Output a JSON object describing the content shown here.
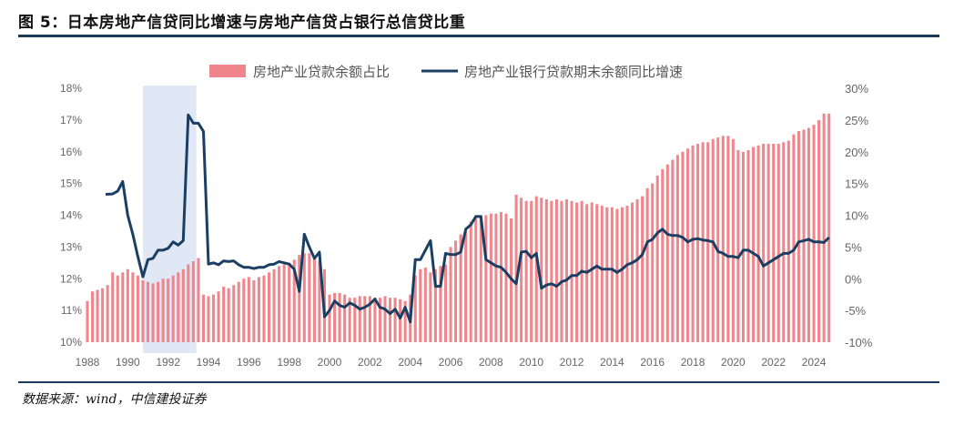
{
  "figure_title": "图 5：日本房地产信贷同比增速与房地产信贷占银行总信贷比重",
  "source_note": "数据来源：wind，中信建投证券",
  "colors": {
    "bar": "#f0868c",
    "line": "#1b3f63",
    "shade": "#dbe4f4",
    "rule": "#1b3a5c"
  },
  "chart_data": {
    "type": "bar+line",
    "title": "图 5：日本房地产信贷同比增速与房地产信贷占银行总信贷比重",
    "legend": [
      "房地产业贷款余额占比",
      "房地产业银行贷款期末余额同比增速"
    ],
    "x_range": [
      1988,
      2024.9
    ],
    "x_ticks": [
      "1988",
      "1990",
      "1992",
      "1994",
      "1996",
      "1998",
      "2000",
      "2002",
      "2004",
      "2006",
      "2008",
      "2010",
      "2012",
      "2014",
      "2016",
      "2018",
      "2020",
      "2022",
      "2024"
    ],
    "y_left": {
      "min": 10,
      "max": 18,
      "ticks": [
        "10%",
        "11%",
        "12%",
        "13%",
        "14%",
        "15%",
        "16%",
        "17%",
        "18%"
      ]
    },
    "y_right": {
      "min": -10,
      "max": 30,
      "ticks": [
        "-10%",
        "-5%",
        "0%",
        "5%",
        "10%",
        "15%",
        "20%",
        "25%",
        "30%"
      ]
    },
    "shaded_period": [
      1990.75,
      1993.4
    ],
    "series": [
      {
        "name": "房地产业贷款余额占比",
        "type": "bar",
        "axis": "left",
        "points": [
          [
            1988.0,
            11.3
          ],
          [
            1988.25,
            11.6
          ],
          [
            1988.5,
            11.65
          ],
          [
            1988.75,
            11.7
          ],
          [
            1989.0,
            11.8
          ],
          [
            1989.25,
            12.2
          ],
          [
            1989.5,
            12.1
          ],
          [
            1989.75,
            12.2
          ],
          [
            1990.0,
            12.3
          ],
          [
            1990.25,
            12.2
          ],
          [
            1990.5,
            12.1
          ],
          [
            1990.75,
            11.95
          ],
          [
            1991.0,
            11.9
          ],
          [
            1991.25,
            11.85
          ],
          [
            1991.5,
            11.9
          ],
          [
            1991.75,
            12.0
          ],
          [
            1992.0,
            12.0
          ],
          [
            1992.25,
            12.1
          ],
          [
            1992.5,
            12.2
          ],
          [
            1992.75,
            12.3
          ],
          [
            1993.0,
            12.45
          ],
          [
            1993.25,
            12.55
          ],
          [
            1993.5,
            12.65
          ],
          [
            1993.75,
            11.5
          ],
          [
            1994.0,
            11.45
          ],
          [
            1994.25,
            11.5
          ],
          [
            1994.5,
            11.6
          ],
          [
            1994.75,
            11.75
          ],
          [
            1995.0,
            11.7
          ],
          [
            1995.25,
            11.8
          ],
          [
            1995.5,
            11.9
          ],
          [
            1995.75,
            12.0
          ],
          [
            1996.0,
            12.05
          ],
          [
            1996.25,
            11.95
          ],
          [
            1996.5,
            12.05
          ],
          [
            1996.75,
            12.1
          ],
          [
            1997.0,
            12.2
          ],
          [
            1997.25,
            12.3
          ],
          [
            1997.5,
            12.4
          ],
          [
            1997.75,
            12.45
          ],
          [
            1998.0,
            12.5
          ],
          [
            1998.25,
            12.6
          ],
          [
            1998.5,
            12.75
          ],
          [
            1998.75,
            12.8
          ],
          [
            1999.0,
            12.8
          ],
          [
            1999.25,
            12.7
          ],
          [
            1999.5,
            12.55
          ],
          [
            1999.75,
            12.3
          ],
          [
            2000.0,
            11.5
          ],
          [
            2000.25,
            11.55
          ],
          [
            2000.5,
            11.55
          ],
          [
            2000.75,
            11.5
          ],
          [
            2001.0,
            11.4
          ],
          [
            2001.25,
            11.4
          ],
          [
            2001.5,
            11.45
          ],
          [
            2001.75,
            11.45
          ],
          [
            2002.0,
            11.45
          ],
          [
            2002.25,
            11.4
          ],
          [
            2002.5,
            11.4
          ],
          [
            2002.75,
            11.45
          ],
          [
            2003.0,
            11.4
          ],
          [
            2003.25,
            11.4
          ],
          [
            2003.5,
            11.35
          ],
          [
            2003.75,
            11.3
          ],
          [
            2004.0,
            11.5
          ],
          [
            2004.25,
            12.1
          ],
          [
            2004.5,
            12.3
          ],
          [
            2004.75,
            12.35
          ],
          [
            2005.0,
            12.2
          ],
          [
            2005.25,
            12.3
          ],
          [
            2005.5,
            12.4
          ],
          [
            2005.75,
            12.45
          ],
          [
            2006.0,
            13.0
          ],
          [
            2006.25,
            13.2
          ],
          [
            2006.5,
            13.4
          ],
          [
            2006.75,
            13.5
          ],
          [
            2007.0,
            13.8
          ],
          [
            2007.25,
            13.9
          ],
          [
            2007.5,
            14.0
          ],
          [
            2007.75,
            14.0
          ],
          [
            2008.0,
            14.05
          ],
          [
            2008.25,
            14.05
          ],
          [
            2008.5,
            14.1
          ],
          [
            2008.75,
            14.05
          ],
          [
            2009.0,
            13.9
          ],
          [
            2009.25,
            14.65
          ],
          [
            2009.5,
            14.55
          ],
          [
            2009.75,
            14.45
          ],
          [
            2010.0,
            14.45
          ],
          [
            2010.25,
            14.6
          ],
          [
            2010.5,
            14.55
          ],
          [
            2010.75,
            14.5
          ],
          [
            2011.0,
            14.45
          ],
          [
            2011.25,
            14.5
          ],
          [
            2011.5,
            14.45
          ],
          [
            2011.75,
            14.5
          ],
          [
            2012.0,
            14.45
          ],
          [
            2012.25,
            14.4
          ],
          [
            2012.5,
            14.45
          ],
          [
            2012.75,
            14.35
          ],
          [
            2013.0,
            14.4
          ],
          [
            2013.25,
            14.35
          ],
          [
            2013.5,
            14.3
          ],
          [
            2013.75,
            14.25
          ],
          [
            2014.0,
            14.25
          ],
          [
            2014.25,
            14.2
          ],
          [
            2014.5,
            14.25
          ],
          [
            2014.75,
            14.3
          ],
          [
            2015.0,
            14.4
          ],
          [
            2015.25,
            14.5
          ],
          [
            2015.5,
            14.6
          ],
          [
            2015.75,
            14.85
          ],
          [
            2016.0,
            15.0
          ],
          [
            2016.25,
            15.25
          ],
          [
            2016.5,
            15.45
          ],
          [
            2016.75,
            15.6
          ],
          [
            2017.0,
            15.75
          ],
          [
            2017.25,
            15.9
          ],
          [
            2017.5,
            16.0
          ],
          [
            2017.75,
            16.1
          ],
          [
            2018.0,
            16.2
          ],
          [
            2018.25,
            16.25
          ],
          [
            2018.5,
            16.3
          ],
          [
            2018.75,
            16.3
          ],
          [
            2019.0,
            16.4
          ],
          [
            2019.25,
            16.45
          ],
          [
            2019.5,
            16.5
          ],
          [
            2019.75,
            16.5
          ],
          [
            2020.0,
            16.4
          ],
          [
            2020.25,
            16.05
          ],
          [
            2020.5,
            16.0
          ],
          [
            2020.75,
            16.05
          ],
          [
            2021.0,
            16.15
          ],
          [
            2021.25,
            16.2
          ],
          [
            2021.5,
            16.25
          ],
          [
            2021.75,
            16.25
          ],
          [
            2022.0,
            16.25
          ],
          [
            2022.25,
            16.25
          ],
          [
            2022.5,
            16.3
          ],
          [
            2022.75,
            16.35
          ],
          [
            2023.0,
            16.55
          ],
          [
            2023.25,
            16.65
          ],
          [
            2023.5,
            16.7
          ],
          [
            2023.75,
            16.75
          ],
          [
            2024.0,
            16.85
          ],
          [
            2024.25,
            17.0
          ],
          [
            2024.5,
            17.2
          ],
          [
            2024.75,
            17.2
          ]
        ]
      },
      {
        "name": "房地产业银行贷款期末余额同比增速",
        "type": "line",
        "axis": "right",
        "points": [
          [
            1988.9,
            13.3
          ],
          [
            1989.25,
            13.35
          ],
          [
            1989.5,
            13.8
          ],
          [
            1989.75,
            15.3
          ],
          [
            1990.0,
            10.0
          ],
          [
            1990.25,
            7.0
          ],
          [
            1990.5,
            3.5
          ],
          [
            1990.75,
            0.3
          ],
          [
            1991.0,
            3.0
          ],
          [
            1991.25,
            3.2
          ],
          [
            1991.5,
            4.5
          ],
          [
            1991.75,
            4.5
          ],
          [
            1992.0,
            4.8
          ],
          [
            1992.25,
            5.8
          ],
          [
            1992.5,
            5.3
          ],
          [
            1992.75,
            6.0
          ],
          [
            1993.0,
            25.8
          ],
          [
            1993.25,
            24.5
          ],
          [
            1993.5,
            24.5
          ],
          [
            1993.75,
            23.2
          ],
          [
            1994.0,
            2.3
          ],
          [
            1994.25,
            2.5
          ],
          [
            1994.5,
            2.2
          ],
          [
            1994.75,
            2.8
          ],
          [
            1995.0,
            2.7
          ],
          [
            1995.25,
            2.8
          ],
          [
            1995.5,
            2.2
          ],
          [
            1995.75,
            1.8
          ],
          [
            1996.0,
            1.8
          ],
          [
            1996.25,
            1.6
          ],
          [
            1996.5,
            1.8
          ],
          [
            1996.75,
            1.8
          ],
          [
            1997.0,
            2.2
          ],
          [
            1997.25,
            2.3
          ],
          [
            1997.5,
            2.7
          ],
          [
            1997.75,
            2.5
          ],
          [
            1998.0,
            2.3
          ],
          [
            1998.25,
            1.5
          ],
          [
            1998.5,
            -2.0
          ],
          [
            1998.75,
            7.0
          ],
          [
            1999.0,
            5.0
          ],
          [
            1999.25,
            3.2
          ],
          [
            1999.5,
            4.2
          ],
          [
            1999.75,
            -6.0
          ],
          [
            2000.0,
            -5.0
          ],
          [
            2000.25,
            -3.5
          ],
          [
            2000.5,
            -4.2
          ],
          [
            2000.75,
            -4.5
          ],
          [
            2001.0,
            -3.8
          ],
          [
            2001.25,
            -4.2
          ],
          [
            2001.5,
            -4.8
          ],
          [
            2001.75,
            -4.5
          ],
          [
            2002.0,
            -4.0
          ],
          [
            2002.25,
            -3.2
          ],
          [
            2002.5,
            -4.5
          ],
          [
            2002.75,
            -4.8
          ],
          [
            2003.0,
            -5.5
          ],
          [
            2003.25,
            -4.8
          ],
          [
            2003.5,
            -6.2
          ],
          [
            2003.75,
            -4.5
          ],
          [
            2004.0,
            -6.8
          ],
          [
            2004.25,
            3.0
          ],
          [
            2004.5,
            3.0
          ],
          [
            2004.75,
            4.5
          ],
          [
            2005.0,
            6.0
          ],
          [
            2005.25,
            -1.2
          ],
          [
            2005.5,
            -1.2
          ],
          [
            2005.75,
            4.0
          ],
          [
            2006.0,
            3.8
          ],
          [
            2006.25,
            3.8
          ],
          [
            2006.5,
            4.2
          ],
          [
            2006.75,
            7.8
          ],
          [
            2007.0,
            8.5
          ],
          [
            2007.25,
            9.8
          ],
          [
            2007.5,
            9.8
          ],
          [
            2007.75,
            3.0
          ],
          [
            2008.0,
            2.5
          ],
          [
            2008.25,
            2.0
          ],
          [
            2008.5,
            1.8
          ],
          [
            2008.75,
            1.0
          ],
          [
            2009.0,
            0.0
          ],
          [
            2009.25,
            -0.8
          ],
          [
            2009.5,
            4.2
          ],
          [
            2009.75,
            4.3
          ],
          [
            2010.0,
            3.3
          ],
          [
            2010.25,
            4.0
          ],
          [
            2010.5,
            -1.5
          ],
          [
            2010.75,
            -1.0
          ],
          [
            2011.0,
            -0.8
          ],
          [
            2011.25,
            -1.2
          ],
          [
            2011.5,
            -0.5
          ],
          [
            2011.75,
            -0.2
          ],
          [
            2012.0,
            0.5
          ],
          [
            2012.25,
            0.5
          ],
          [
            2012.5,
            1.2
          ],
          [
            2012.75,
            1.0
          ],
          [
            2013.0,
            1.5
          ],
          [
            2013.25,
            2.0
          ],
          [
            2013.5,
            1.5
          ],
          [
            2013.75,
            1.5
          ],
          [
            2014.0,
            1.5
          ],
          [
            2014.25,
            1.0
          ],
          [
            2014.5,
            1.5
          ],
          [
            2014.75,
            2.2
          ],
          [
            2015.0,
            2.5
          ],
          [
            2015.25,
            3.0
          ],
          [
            2015.5,
            3.8
          ],
          [
            2015.75,
            5.8
          ],
          [
            2016.0,
            6.2
          ],
          [
            2016.25,
            7.2
          ],
          [
            2016.5,
            7.8
          ],
          [
            2016.75,
            7.0
          ],
          [
            2017.0,
            6.8
          ],
          [
            2017.25,
            6.8
          ],
          [
            2017.5,
            6.5
          ],
          [
            2017.75,
            5.8
          ],
          [
            2018.0,
            6.2
          ],
          [
            2018.25,
            6.3
          ],
          [
            2018.5,
            6.1
          ],
          [
            2018.75,
            6.0
          ],
          [
            2019.0,
            5.8
          ],
          [
            2019.25,
            4.3
          ],
          [
            2019.5,
            4.0
          ],
          [
            2019.75,
            3.5
          ],
          [
            2020.0,
            3.5
          ],
          [
            2020.25,
            3.3
          ],
          [
            2020.5,
            4.5
          ],
          [
            2020.75,
            4.5
          ],
          [
            2021.0,
            4.0
          ],
          [
            2021.25,
            3.5
          ],
          [
            2021.5,
            2.0
          ],
          [
            2021.75,
            2.5
          ],
          [
            2022.0,
            3.0
          ],
          [
            2022.25,
            3.5
          ],
          [
            2022.5,
            4.0
          ],
          [
            2022.75,
            4.0
          ],
          [
            2023.0,
            4.5
          ],
          [
            2023.25,
            5.8
          ],
          [
            2023.5,
            6.0
          ],
          [
            2023.75,
            6.2
          ],
          [
            2024.0,
            5.8
          ],
          [
            2024.25,
            5.8
          ],
          [
            2024.5,
            5.7
          ],
          [
            2024.75,
            6.5
          ]
        ]
      }
    ]
  }
}
